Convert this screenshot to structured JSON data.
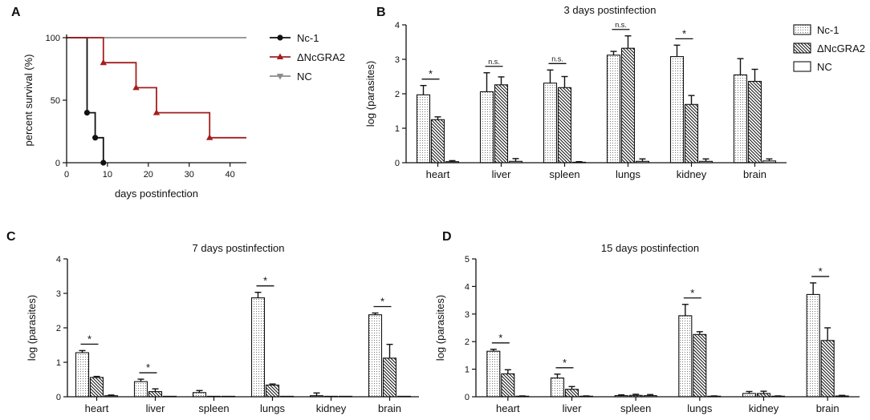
{
  "colors": {
    "nc1": "#111111",
    "dngra2": "#a31f1f",
    "nc": "#8c8c8c",
    "axis": "#111111"
  },
  "chart_data": [
    {
      "panel": "A",
      "type": "line",
      "title": "",
      "xlabel": "days postinfection",
      "ylabel": "percent survival (%)",
      "xlim": [
        0,
        44
      ],
      "ylim": [
        0,
        100
      ],
      "xticks": [
        0,
        10,
        20,
        30,
        40
      ],
      "yticks": [
        0,
        50,
        100
      ],
      "legend": "right",
      "series": [
        {
          "name": "Nc-1",
          "key": "nc1",
          "marker": "circle",
          "steps": [
            [
              0,
              100
            ],
            [
              5,
              100
            ],
            [
              5,
              40
            ],
            [
              7,
              40
            ],
            [
              7,
              20
            ],
            [
              9,
              20
            ],
            [
              9,
              0
            ]
          ],
          "points": [
            [
              5,
              40
            ],
            [
              7,
              20
            ],
            [
              9,
              0
            ]
          ]
        },
        {
          "name": "ΔNcGRA2",
          "key": "dngra2",
          "marker": "triangle-up",
          "steps": [
            [
              0,
              100
            ],
            [
              9,
              100
            ],
            [
              9,
              80
            ],
            [
              17,
              80
            ],
            [
              17,
              60
            ],
            [
              22,
              60
            ],
            [
              22,
              40
            ],
            [
              35,
              40
            ],
            [
              35,
              20
            ],
            [
              44,
              20
            ]
          ],
          "points": [
            [
              9,
              80
            ],
            [
              17,
              60
            ],
            [
              22,
              40
            ],
            [
              35,
              20
            ]
          ]
        },
        {
          "name": "NC",
          "key": "nc",
          "marker": "triangle-down",
          "steps": [
            [
              0,
              100
            ],
            [
              44,
              100
            ]
          ],
          "points": []
        }
      ]
    },
    {
      "panel": "B",
      "type": "bar",
      "title": "3 days postinfection",
      "ylabel": "log (parasites)",
      "ylim": [
        0,
        4
      ],
      "yticks": [
        0,
        1,
        2,
        3,
        4
      ],
      "categories": [
        "heart",
        "liver",
        "spleen",
        "lungs",
        "kidney",
        "brain"
      ],
      "series": [
        {
          "name": "Nc-1",
          "values": [
            1.97,
            2.06,
            2.31,
            3.12,
            3.08,
            2.55
          ],
          "errors": [
            0.27,
            0.55,
            0.38,
            0.11,
            0.33,
            0.47
          ]
        },
        {
          "name": "ΔNcGRA2",
          "values": [
            1.25,
            2.26,
            2.18,
            3.32,
            1.69,
            2.36
          ],
          "errors": [
            0.08,
            0.23,
            0.32,
            0.36,
            0.26,
            0.35
          ]
        },
        {
          "name": "NC",
          "values": [
            0.03,
            0.04,
            0.01,
            0.04,
            0.04,
            0.05
          ],
          "errors": [
            0.03,
            0.08,
            0.02,
            0.07,
            0.07,
            0.06
          ]
        }
      ],
      "annotations": [
        {
          "category": "heart",
          "label": "*"
        },
        {
          "category": "liver",
          "label": "n.s."
        },
        {
          "category": "spleen",
          "label": "n.s."
        },
        {
          "category": "lungs",
          "label": "n.s."
        },
        {
          "category": "kidney",
          "label": "*"
        }
      ],
      "legend": "top-right"
    },
    {
      "panel": "C",
      "type": "bar",
      "title": "7  days postinfection",
      "ylabel": "log (parasites)",
      "ylim": [
        0,
        4
      ],
      "yticks": [
        0,
        1,
        2,
        3,
        4
      ],
      "categories": [
        "heart",
        "liver",
        "spleen",
        "lungs",
        "kidney",
        "brain"
      ],
      "series": [
        {
          "name": "Nc-1",
          "values": [
            1.28,
            0.44,
            0.12,
            2.87,
            0.03,
            2.38
          ],
          "errors": [
            0.06,
            0.07,
            0.06,
            0.16,
            0.08,
            0.05
          ]
        },
        {
          "name": "ΔNcGRA2",
          "values": [
            0.56,
            0.15,
            0.0,
            0.34,
            0.0,
            1.12
          ],
          "errors": [
            0.03,
            0.08,
            0.0,
            0.03,
            0.0,
            0.4
          ]
        },
        {
          "name": "NC",
          "values": [
            0.03,
            0.0,
            0.0,
            0.0,
            0.0,
            0.0
          ],
          "errors": [
            0.02,
            0.0,
            0.0,
            0.0,
            0.0,
            0.0
          ]
        }
      ],
      "annotations": [
        {
          "category": "heart",
          "label": "*"
        },
        {
          "category": "liver",
          "label": "*"
        },
        {
          "category": "lungs",
          "label": "*"
        },
        {
          "category": "brain",
          "label": "*"
        }
      ]
    },
    {
      "panel": "D",
      "type": "bar",
      "title": "15 days postinfection",
      "ylabel": "log (parasites)",
      "ylim": [
        0,
        5
      ],
      "yticks": [
        0,
        1,
        2,
        3,
        4,
        5
      ],
      "categories": [
        "heart",
        "liver",
        "spleen",
        "lungs",
        "kidney",
        "brain"
      ],
      "series": [
        {
          "name": "Nc-1",
          "values": [
            1.65,
            0.68,
            0.04,
            2.94,
            0.12,
            3.71
          ],
          "errors": [
            0.07,
            0.14,
            0.03,
            0.41,
            0.07,
            0.42
          ]
        },
        {
          "name": "ΔNcGRA2",
          "values": [
            0.83,
            0.27,
            0.05,
            2.26,
            0.12,
            2.04
          ],
          "errors": [
            0.15,
            0.1,
            0.04,
            0.1,
            0.08,
            0.46
          ]
        },
        {
          "name": "NC",
          "values": [
            0.02,
            0.02,
            0.04,
            0.02,
            0.02,
            0.03
          ],
          "errors": [
            0.01,
            0.01,
            0.04,
            0.01,
            0.01,
            0.02
          ]
        }
      ],
      "annotations": [
        {
          "category": "heart",
          "label": "*"
        },
        {
          "category": "liver",
          "label": "*"
        },
        {
          "category": "lungs",
          "label": "*"
        },
        {
          "category": "brain",
          "label": "*"
        }
      ]
    }
  ]
}
